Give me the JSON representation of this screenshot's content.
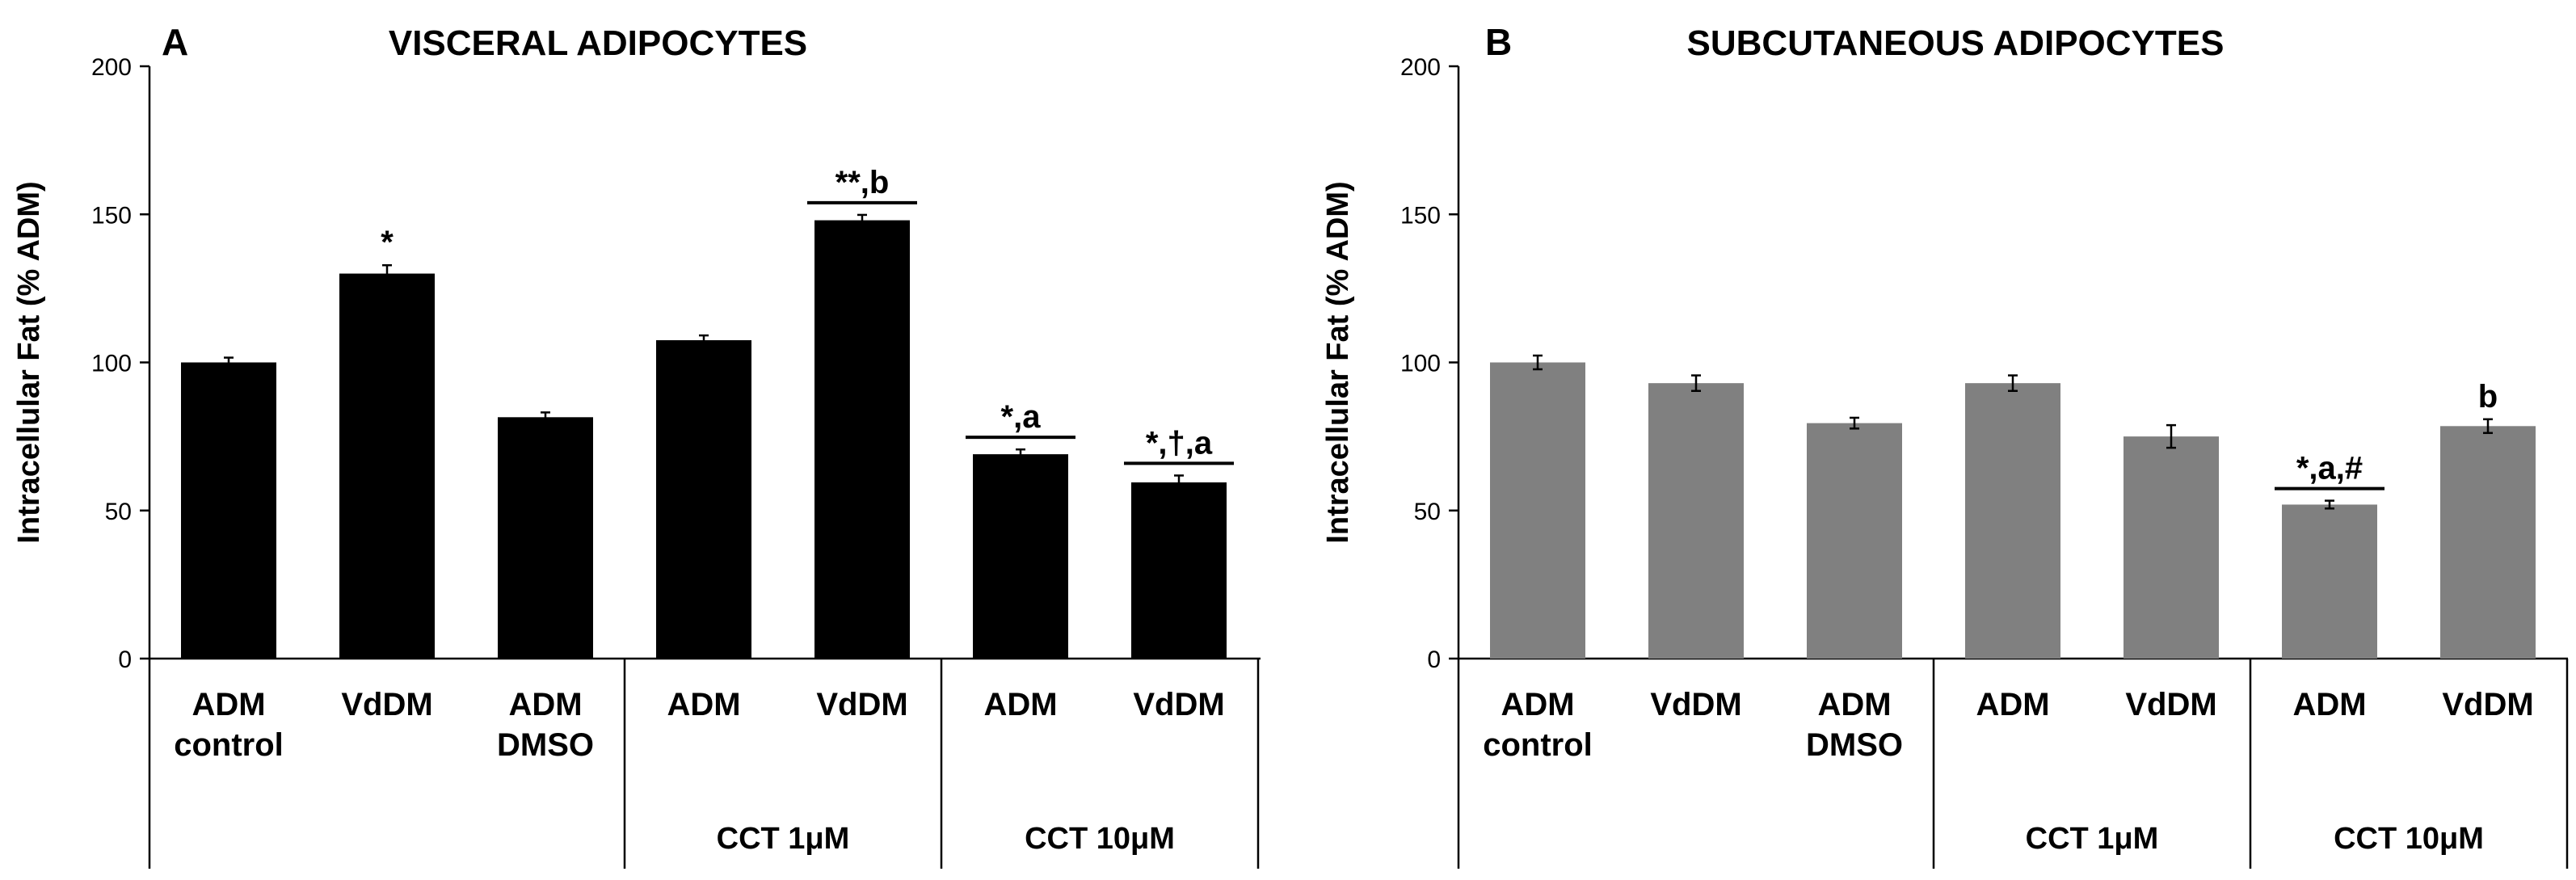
{
  "chart_data": [
    {
      "type": "bar",
      "panel_label": "A",
      "title": "VISCERAL ADIPOCYTES",
      "ylabel": "Intracellular Fat (% ADM)",
      "xlabel": "",
      "ylim": [
        0,
        200
      ],
      "yticks": [
        0,
        50,
        100,
        150,
        200
      ],
      "grid": false,
      "bar_color": "#000000",
      "categories": [
        [
          "ADM",
          "control"
        ],
        [
          "VdDM"
        ],
        [
          "ADM",
          "DMSO"
        ],
        [
          "ADM"
        ],
        [
          "VdDM"
        ],
        [
          "ADM"
        ],
        [
          "VdDM"
        ]
      ],
      "values": [
        100,
        130,
        81.5,
        107.5,
        148,
        69,
        59.5
      ],
      "errors": [
        0.8,
        2,
        0.8,
        0.8,
        1,
        0.8,
        1.5
      ],
      "annotations": [
        "",
        "*",
        "",
        "",
        "**,b",
        "*,a",
        "*,†,a"
      ],
      "groups": [
        {
          "label": "",
          "from": 0,
          "to": 2
        },
        {
          "label": "CCT 1μM",
          "from": 3,
          "to": 4
        },
        {
          "label": "CCT 10μM",
          "from": 5,
          "to": 6
        }
      ]
    },
    {
      "type": "bar",
      "panel_label": "B",
      "title": "SUBCUTANEOUS ADIPOCYTES",
      "ylabel": "Intracellular Fat (% ADM)",
      "xlabel": "",
      "ylim": [
        0,
        200
      ],
      "yticks": [
        0,
        50,
        100,
        150,
        200
      ],
      "grid": false,
      "bar_color": "#808080",
      "categories": [
        [
          "ADM",
          "control"
        ],
        [
          "VdDM"
        ],
        [
          "ADM",
          "DMSO"
        ],
        [
          "ADM"
        ],
        [
          "VdDM"
        ],
        [
          "ADM"
        ],
        [
          "VdDM"
        ]
      ],
      "values": [
        100,
        93,
        79.5,
        93,
        75,
        52,
        78.5
      ],
      "errors": [
        1.5,
        1.8,
        1,
        1.8,
        3,
        0.5,
        1.5
      ],
      "annotations": [
        "",
        "",
        "",
        "",
        "",
        "*,a,#",
        "b"
      ],
      "groups": [
        {
          "label": "",
          "from": 0,
          "to": 2
        },
        {
          "label": "CCT 1μM",
          "from": 3,
          "to": 4
        },
        {
          "label": "CCT 10μM",
          "from": 5,
          "to": 6
        }
      ]
    }
  ]
}
